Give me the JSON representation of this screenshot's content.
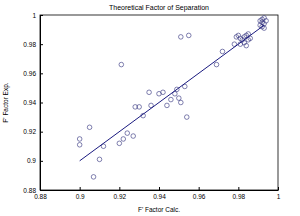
{
  "chart_data": {
    "type": "scatter",
    "title": "Theoretical Factor of Separation",
    "x_label": "F' Factor Calc.",
    "y_label": "F' Factor Exp.",
    "xlim": [
      0.88,
      1
    ],
    "ylim": [
      0.88,
      1
    ],
    "xticks": [
      0.88,
      0.9,
      0.92,
      0.94,
      0.96,
      0.98,
      1
    ],
    "yticks": [
      0.88,
      0.9,
      0.92,
      0.94,
      0.96,
      0.98,
      1
    ],
    "grid": false,
    "series": [
      {
        "type": "scatter",
        "marker": "circle",
        "color": "#2e2e7a",
        "x": [
          0.9,
          0.9,
          0.905,
          0.907,
          0.91,
          0.912,
          0.92,
          0.921,
          0.922,
          0.924,
          0.927,
          0.928,
          0.93,
          0.932,
          0.935,
          0.936,
          0.94,
          0.942,
          0.944,
          0.946,
          0.948,
          0.949,
          0.95,
          0.951,
          0.951,
          0.953,
          0.954,
          0.955,
          0.969,
          0.972,
          0.978,
          0.979,
          0.98,
          0.981,
          0.981,
          0.982,
          0.983,
          0.983,
          0.984,
          0.984,
          0.985,
          0.985,
          0.986,
          0.991,
          0.991,
          0.992,
          0.992,
          0.993,
          0.993,
          0.993,
          0.994,
          0.992
        ],
        "values": [
          0.915,
          0.911,
          0.923,
          0.889,
          0.901,
          0.91,
          0.912,
          0.966,
          0.915,
          0.919,
          0.917,
          0.937,
          0.937,
          0.931,
          0.947,
          0.938,
          0.946,
          0.947,
          0.938,
          0.942,
          0.946,
          0.949,
          0.943,
          0.94,
          0.985,
          0.951,
          0.93,
          0.986,
          0.966,
          0.975,
          0.98,
          0.985,
          0.986,
          0.984,
          0.98,
          0.983,
          0.985,
          0.981,
          0.986,
          0.979,
          0.983,
          0.987,
          0.984,
          0.993,
          0.996,
          0.995,
          0.997,
          0.994,
          0.991,
          0.998,
          0.996,
          0.992
        ]
      },
      {
        "type": "line",
        "line_style": "solid",
        "color": "#1a1a80",
        "x": [
          0.9,
          0.993
        ],
        "values": [
          0.9,
          0.993
        ]
      }
    ]
  }
}
